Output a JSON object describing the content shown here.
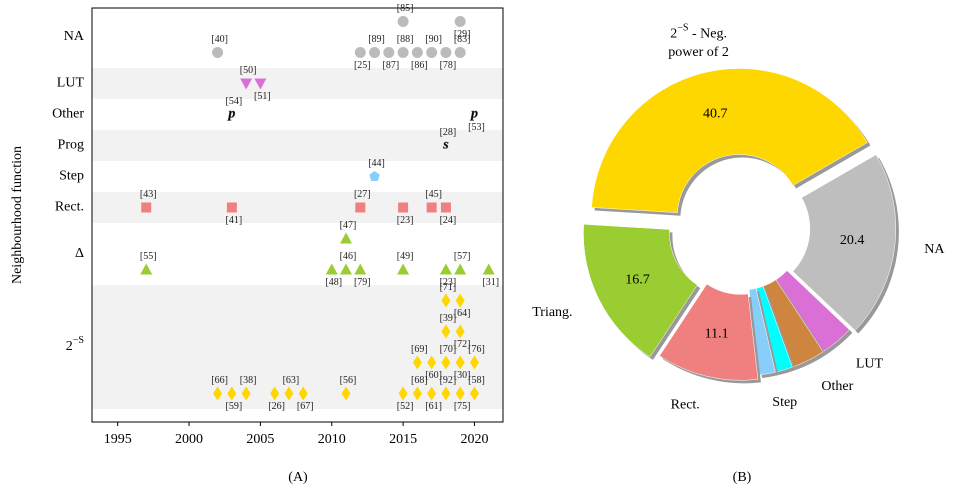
{
  "chart_data": [
    {
      "type": "scatter",
      "panel_label": "(A)",
      "ylabel": "Neighbourhood function",
      "xlim": [
        1993.2,
        2022
      ],
      "xticks": [
        1995,
        2000,
        2005,
        2010,
        2015,
        2020
      ],
      "groups": [
        {
          "category": "NA",
          "color": "#bbbbbb",
          "marker": "circle",
          "points": [
            {
              "x": 2002,
              "label": "[40]"
            },
            {
              "x": 2012,
              "label": "[25]"
            },
            {
              "x": 2013,
              "label": "[89]"
            },
            {
              "x": 2014,
              "label": "[87]"
            },
            {
              "x": 2015,
              "label": "[88]"
            },
            {
              "x": 2016,
              "label": "[86]"
            },
            {
              "x": 2017,
              "label": "[90]"
            },
            {
              "x": 2018,
              "label": "[78]"
            },
            {
              "x": 2019,
              "label": "[83]"
            },
            {
              "x": 2015,
              "label": "[85]"
            },
            {
              "x": 2019,
              "label": "[29]"
            }
          ]
        },
        {
          "category": "LUT",
          "color": "#da70d6",
          "marker": "triangle-down",
          "points": [
            {
              "x": 2004,
              "label": "[50]"
            },
            {
              "x": 2005,
              "label": "[51]"
            }
          ]
        },
        {
          "category": "Other",
          "color": "#cd853f",
          "marker": "glyph-p",
          "points": [
            {
              "x": 2003,
              "label": "[54]"
            },
            {
              "x": 2020,
              "label": "[53]"
            }
          ]
        },
        {
          "category": "Prog",
          "color": "#00e5ff",
          "marker": "glyph-s",
          "points": [
            {
              "x": 2018,
              "label": "[28]"
            }
          ]
        },
        {
          "category": "Step",
          "color": "#87cefa",
          "marker": "pentagon",
          "points": [
            {
              "x": 2013,
              "label": "[44]"
            }
          ]
        },
        {
          "category": "Rect.",
          "color": "#f08080",
          "marker": "square",
          "points": [
            {
              "x": 1997,
              "label": "[43]"
            },
            {
              "x": 2003,
              "label": "[41]"
            },
            {
              "x": 2012,
              "label": "[27]"
            },
            {
              "x": 2015,
              "label": "[23]"
            },
            {
              "x": 2017,
              "label": "[45]"
            },
            {
              "x": 2018,
              "label": "[24]"
            }
          ]
        },
        {
          "category": "Δ",
          "color": "#9acd32",
          "marker": "triangle-up",
          "points": [
            {
              "x": 1997,
              "label": "[55]"
            },
            {
              "x": 2010,
              "label": "[48]"
            },
            {
              "x": 2011,
              "label": "[46]"
            },
            {
              "x": 2012,
              "label": "[79]"
            },
            {
              "x": 2015,
              "label": "[49]"
            },
            {
              "x": 2018,
              "label": "[23]"
            },
            {
              "x": 2019,
              "label": "[57]"
            },
            {
              "x": 2021,
              "label": "[31]"
            },
            {
              "x": 2011,
              "label": "[47]"
            }
          ]
        },
        {
          "category": {
            "base": "2",
            "sup": "−S"
          },
          "color": "#ffd700",
          "marker": "diamond",
          "points": [
            {
              "x": 2002,
              "label": "[66]"
            },
            {
              "x": 2003,
              "label": "[59]"
            },
            {
              "x": 2004,
              "label": "[38]"
            },
            {
              "x": 2006,
              "label": "[26]"
            },
            {
              "x": 2007,
              "label": "[63]"
            },
            {
              "x": 2008,
              "label": "[67]"
            },
            {
              "x": 2011,
              "label": "[56]"
            },
            {
              "x": 2015,
              "label": "[52]"
            },
            {
              "x": 2016,
              "label": "[68]"
            },
            {
              "x": 2017,
              "label": "[61]"
            },
            {
              "x": 2018,
              "label": "[92]"
            },
            {
              "x": 2019,
              "label": "[75]"
            },
            {
              "x": 2020,
              "label": "[58]"
            },
            {
              "x": 2016,
              "label": "[69]"
            },
            {
              "x": 2017,
              "label": "[60]"
            },
            {
              "x": 2018,
              "label": "[70]"
            },
            {
              "x": 2019,
              "label": "[30]"
            },
            {
              "x": 2020,
              "label": "[76]"
            },
            {
              "x": 2018,
              "label": "[39]"
            },
            {
              "x": 2019,
              "label": "[72]"
            },
            {
              "x": 2018,
              "label": "[71]"
            },
            {
              "x": 2019,
              "label": "[64]"
            }
          ]
        }
      ]
    },
    {
      "type": "donut",
      "panel_label": "(B)",
      "labels": [
        {
          "base": "2",
          "sup": "−S",
          "text": " - Neg.",
          "line2": "power of 2"
        },
        "NA",
        "LUT",
        "Other",
        null,
        "Step",
        "Rect.",
        "Triang."
      ],
      "values": [
        40.7,
        20.4,
        3.7,
        3.7,
        1.9,
        1.8,
        11.1,
        16.7
      ],
      "value_labels": [
        "40.7",
        "20.4",
        null,
        null,
        null,
        null,
        "11.1",
        "16.7"
      ],
      "colors": [
        "#ffd700",
        "#bebebe",
        "#da70d6",
        "#cd853f",
        "#00ffff",
        "#87cefa",
        "#f08080",
        "#9acd32"
      ]
    }
  ]
}
